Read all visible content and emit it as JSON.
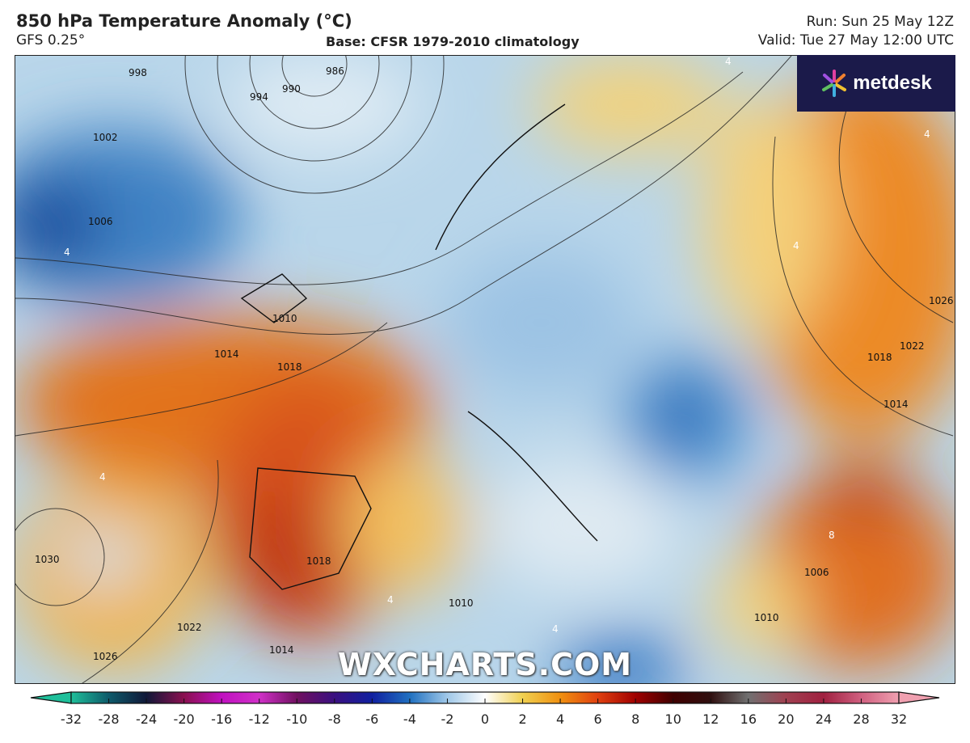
{
  "header": {
    "title": "850 hPa Temperature Anomaly (°C)",
    "model": "GFS 0.25°",
    "base": "Base: CFSR 1979-2010 climatology",
    "run": "Run: Sun 25 May 12Z",
    "valid": "Valid: Tue 27 May 12:00 UTC"
  },
  "logo": {
    "text": "metdesk",
    "icon": "pinwheel-icon"
  },
  "watermark": "WXCHARTS.COM",
  "map": {
    "isobar_labels": [
      "998",
      "990",
      "986",
      "994",
      "1002",
      "1006",
      "1010",
      "1014",
      "1018",
      "1030",
      "1026",
      "1022",
      "1014",
      "1018",
      "1022",
      "1026",
      "1006",
      "1010",
      "1014",
      "1018",
      "1010"
    ],
    "anomaly_labels": [
      "4",
      "4",
      "4",
      "4",
      "4",
      "8",
      "4",
      "4"
    ]
  },
  "colorbar": {
    "ticks": [
      "-32",
      "-28",
      "-24",
      "-20",
      "-16",
      "-12",
      "-10",
      "-8",
      "-6",
      "-4",
      "-2",
      "0",
      "2",
      "4",
      "6",
      "8",
      "10",
      "12",
      "16",
      "20",
      "24",
      "28",
      "32"
    ],
    "colors": [
      "#1fbf9a",
      "#0e5a6a",
      "#101838",
      "#8a1050",
      "#c010c0",
      "#d030c8",
      "#701060",
      "#3a1080",
      "#1020a0",
      "#2070c0",
      "#a0c8e8",
      "#ffffff",
      "#f0d050",
      "#f09010",
      "#e04010",
      "#a00000",
      "#400000",
      "#301010",
      "#707070",
      "#a04050",
      "#a02040",
      "#d06080",
      "#f0a0b0"
    ]
  }
}
